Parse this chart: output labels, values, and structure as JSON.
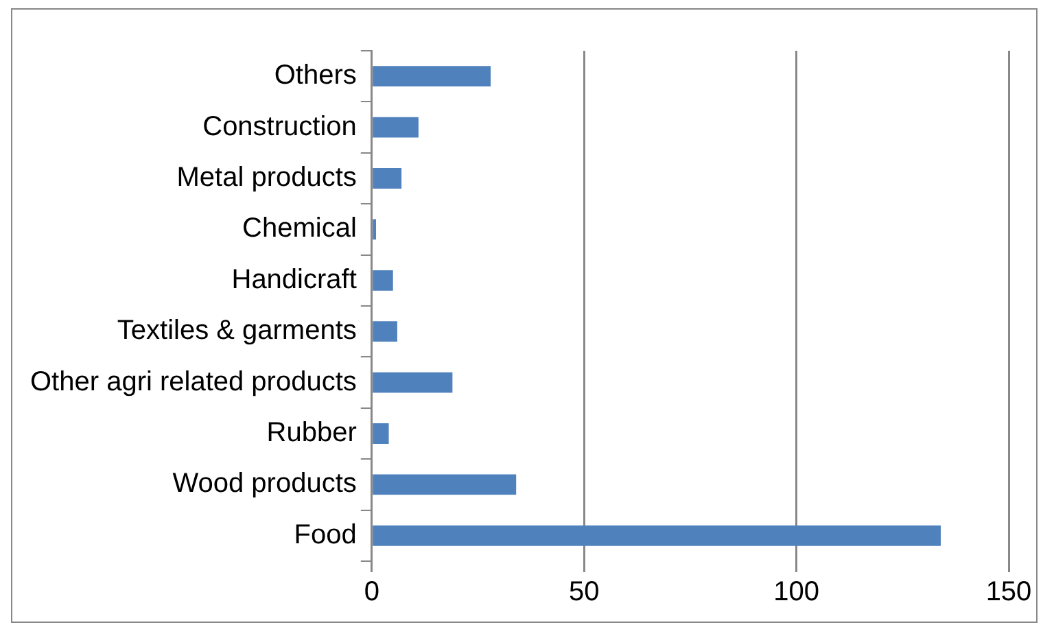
{
  "chart_data": {
    "type": "bar",
    "orientation": "horizontal",
    "categories": [
      "Others",
      "Construction",
      "Metal products",
      "Chemical",
      "Handicraft",
      "Textiles & garments",
      "Other agri related products",
      "Rubber",
      "Wood products",
      "Food"
    ],
    "values": [
      28,
      11,
      7,
      1,
      5,
      6,
      19,
      4,
      34,
      134
    ],
    "color": "#4f81bd",
    "xlim": [
      0,
      150
    ],
    "xticks": [
      0,
      50,
      100,
      150
    ],
    "grid": "x",
    "legend": false
  }
}
